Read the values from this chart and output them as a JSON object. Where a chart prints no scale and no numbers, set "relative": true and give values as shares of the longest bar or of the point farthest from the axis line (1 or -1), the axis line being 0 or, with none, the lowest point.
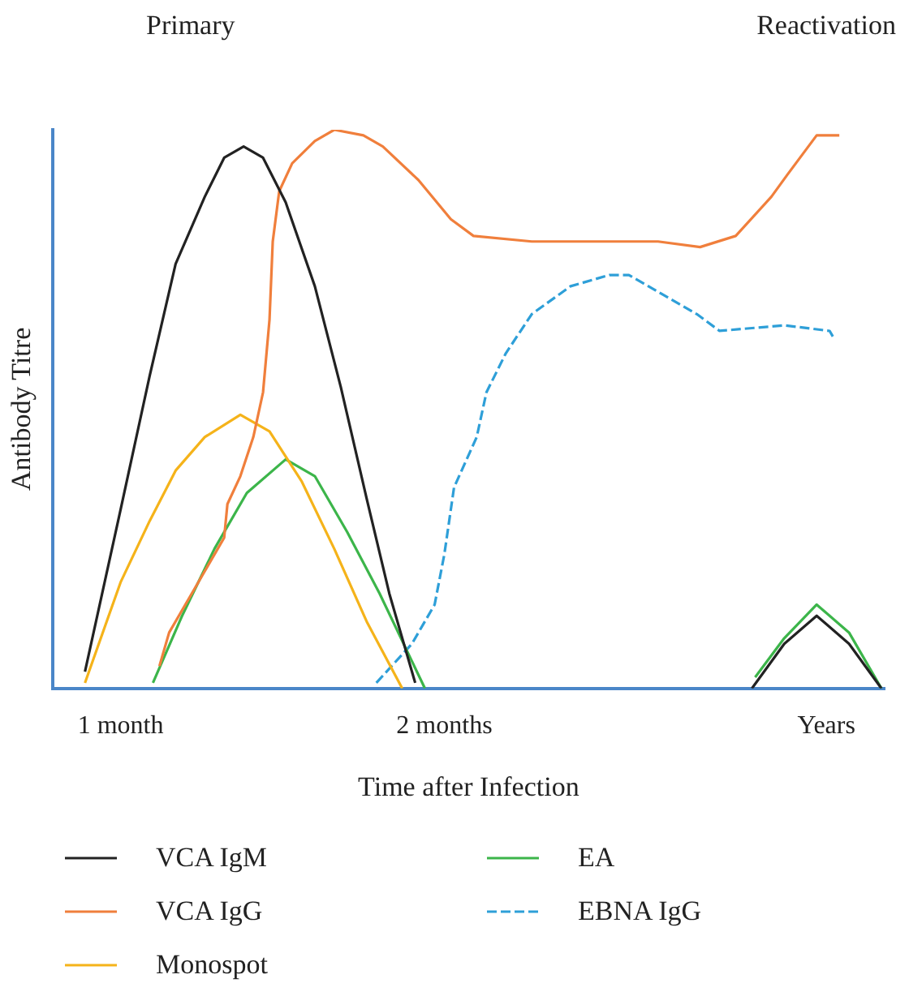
{
  "chart_data": {
    "type": "line",
    "relative": true,
    "xlabel": "Time after Infection",
    "ylabel": "Antibody Titre",
    "annotations": [
      "Primary",
      "Reactivation"
    ],
    "xlim": [
      0.79,
      3.36
    ],
    "xticks": [
      {
        "value": 1,
        "label": "1 month"
      },
      {
        "value": 2,
        "label": "2 months"
      },
      {
        "value": 3.18,
        "label": "Years"
      }
    ],
    "legend": "bottom",
    "grid": false,
    "marker": "none",
    "line_style": "solid",
    "series": [
      {
        "name": "VCA IgM",
        "color": "#222222",
        "x": [
          0.89,
          1.0,
          1.09,
          1.17,
          1.26,
          1.32,
          1.38,
          1.44,
          1.51,
          1.6,
          1.68,
          1.76,
          1.83,
          1.91,
          2.44,
          2.95,
          3.05,
          3.15,
          3.25,
          3.35
        ],
        "values": [
          0.03,
          0.32,
          0.56,
          0.76,
          0.88,
          0.95,
          0.97,
          0.95,
          0.87,
          0.72,
          0.54,
          0.34,
          0.17,
          0.01,
          null,
          0,
          0.08,
          0.13,
          0.08,
          0
        ]
      },
      {
        "name": "VCA IgG",
        "color": "#f07f3c",
        "x": [
          1.12,
          1.15,
          1.24,
          1.32,
          1.33,
          1.37,
          1.41,
          1.44,
          1.46,
          1.47,
          1.49,
          1.53,
          1.6,
          1.66,
          1.75,
          1.81,
          1.92,
          2.02,
          2.09,
          2.27,
          2.66,
          2.79,
          2.9,
          3.01,
          3.06,
          3.15,
          3.22
        ],
        "values": [
          0.04,
          0.1,
          0.19,
          0.27,
          0.33,
          0.38,
          0.45,
          0.53,
          0.66,
          0.8,
          0.89,
          0.94,
          0.98,
          1,
          0.99,
          0.97,
          0.91,
          0.84,
          0.81,
          0.8,
          0.8,
          0.79,
          0.81,
          0.88,
          0.92,
          0.99,
          0.99
        ]
      },
      {
        "name": "Monospot",
        "color": "#f5b31a",
        "x": [
          0.89,
          1.0,
          1.09,
          1.17,
          1.26,
          1.37,
          1.46,
          1.56,
          1.66,
          1.76,
          1.87
        ],
        "values": [
          0.01,
          0.19,
          0.3,
          0.39,
          0.45,
          0.49,
          0.46,
          0.37,
          0.25,
          0.12,
          0
        ]
      },
      {
        "name": "EA",
        "color": "#3cb54a",
        "x": [
          1.1,
          1.19,
          1.29,
          1.39,
          1.51,
          1.6,
          1.7,
          1.8,
          1.94,
          2.44,
          2.96,
          3.05,
          3.15,
          3.25,
          3.35
        ],
        "values": [
          0.01,
          0.13,
          0.25,
          0.35,
          0.41,
          0.38,
          0.28,
          0.17,
          0,
          null,
          0.02,
          0.09,
          0.15,
          0.1,
          0
        ]
      },
      {
        "name": "EBNA IgG",
        "color": "#2e9fd8",
        "line_style": "dashed",
        "x": [
          1.79,
          1.9,
          1.97,
          2.0,
          2.03,
          2.1,
          2.13,
          2.19,
          2.27,
          2.39,
          2.51,
          2.57,
          2.69,
          2.78,
          2.85,
          3.05,
          3.19,
          3.2
        ],
        "values": [
          0.01,
          0.08,
          0.15,
          0.24,
          0.36,
          0.45,
          0.53,
          0.6,
          0.67,
          0.72,
          0.74,
          0.74,
          0.7,
          0.67,
          0.64,
          0.65,
          0.64,
          0.63
        ]
      }
    ]
  }
}
